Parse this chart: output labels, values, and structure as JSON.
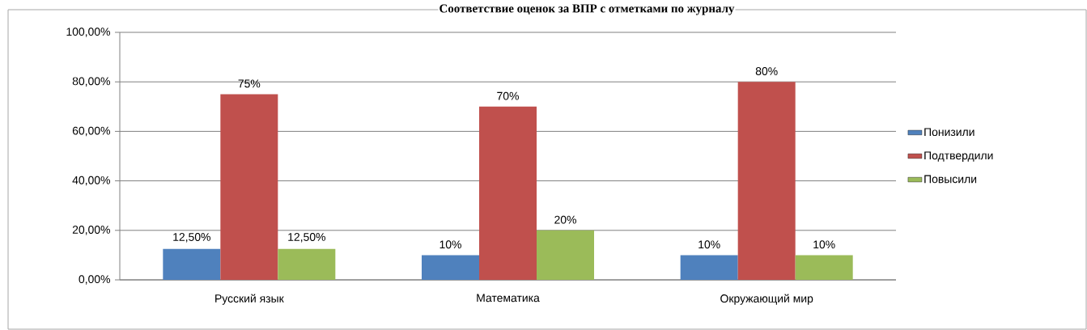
{
  "chart_data": {
    "type": "bar",
    "title": "Соответствие оценок за ВПР с отметками по журналу",
    "categories": [
      "Русский язык",
      "Математика",
      "Окружающий мир"
    ],
    "series": [
      {
        "name": "Понизили",
        "color": "#4f81bd",
        "values": [
          12.5,
          10,
          10
        ],
        "value_labels": [
          "12,50%",
          "10%",
          "10%"
        ]
      },
      {
        "name": "Подтвердили",
        "color": "#c0504d",
        "values": [
          75,
          70,
          80
        ],
        "value_labels": [
          "75%",
          "70%",
          "80%"
        ]
      },
      {
        "name": "Повысили",
        "color": "#9bbb59",
        "values": [
          12.5,
          20,
          10
        ],
        "value_labels": [
          "12,50%",
          "20%",
          "10%"
        ]
      }
    ],
    "ylim": [
      0,
      100
    ],
    "yticks": [
      {
        "value": 0,
        "label": "0,00%"
      },
      {
        "value": 20,
        "label": "20,00%"
      },
      {
        "value": 40,
        "label": "40,00%"
      },
      {
        "value": 60,
        "label": "60,00%"
      },
      {
        "value": 80,
        "label": "80,00%"
      },
      {
        "value": 100,
        "label": "100,00%"
      }
    ],
    "grid": "y",
    "legend": "right"
  }
}
